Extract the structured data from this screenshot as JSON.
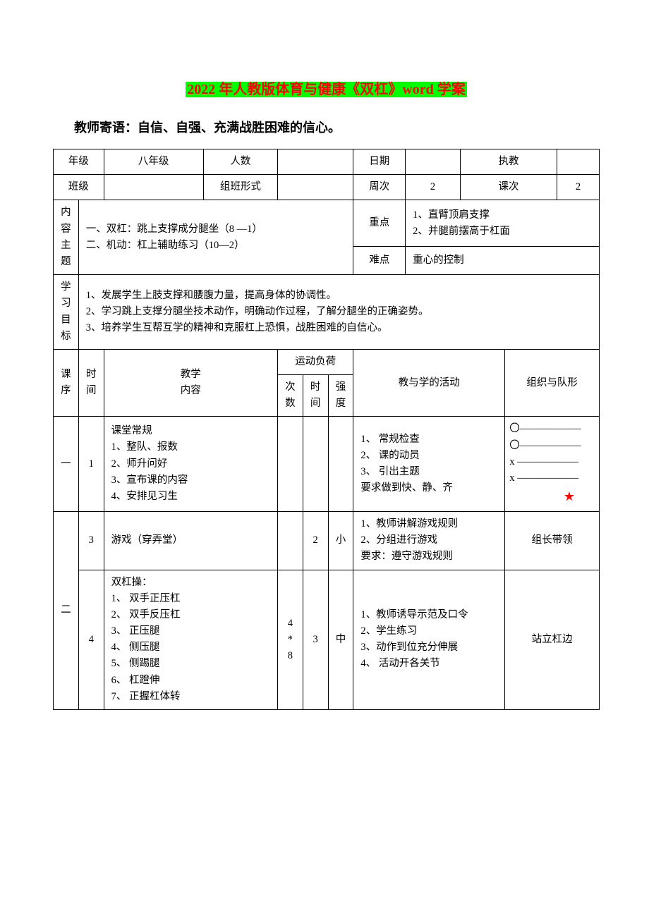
{
  "title_prefix": "2022 年人教版体育与健康《双杠》word 学案",
  "subtitle": "教师寄语：自信、自强、充满战胜困难的信心。",
  "colors": {
    "highlight_bg": "#00ff00",
    "highlight_text": "#ff0000",
    "border": "#000000",
    "text": "#000000",
    "background": "#ffffff",
    "star": "#ff0000"
  },
  "fonts": {
    "body_family": "SimSun",
    "heading_family": "SimHei",
    "title_size_pt": 15,
    "subtitle_size_pt": 14,
    "cell_size_pt": 11
  },
  "header_rows": {
    "row1": {
      "l1": "年级",
      "v1": "八年级",
      "l2": "人数",
      "v2": "",
      "l3": "日期",
      "v3": "",
      "l4": "执教",
      "v4": ""
    },
    "row2": {
      "l1": "班级",
      "v1": "",
      "l2": "组班形式",
      "v2": "",
      "l3": "周次",
      "v3": "2",
      "l4": "课次",
      "v4": "2"
    }
  },
  "content_theme": {
    "label": "内容主题",
    "body": "一、双杠：跳上支撑成分腿坐（8 —1）\n二、机动：杠上辅助练习（10—2）",
    "key_label": "重点",
    "key_body": "1、直臂顶肩支撑\n2、并腿前摆高于杠面",
    "hard_label": "难点",
    "hard_body": "重心的控制"
  },
  "learning_goal": {
    "label": "学习目标",
    "body": "1、发展学生上肢支撑和腰腹力量，提高身体的协调性。\n2、学习跳上支撑分腿坐技术动作，明确动作过程，了解分腿坐的正确姿势。\n3、培养学生互帮互学的精神和克服杠上恐惧，战胜困难的自信心。"
  },
  "section_header": {
    "kexu": "课序",
    "shijian": "时间",
    "neirong": "教学\n内容",
    "fuhe": "运动负荷",
    "cishu": "次数",
    "shijian2": "时间",
    "qiangdu": "强度",
    "huodong": "教与学的活动",
    "duixing": "组织与队形"
  },
  "rows": [
    {
      "kexu": "一",
      "shijian": "1",
      "neirong": "课堂常规\n1、整队、报数\n2、师升问好\n3、宣布课的内容\n4、安排见习生",
      "cishu": "",
      "shijian2": "",
      "qiangdu": "",
      "huodong": "1、 常规检查\n2、 课的动员\n3、 引出主题\n要求做到快、静、齐",
      "formation_lines": [
        "〇――――――",
        "〇――――――",
        "x ――――――",
        "x ――――――"
      ],
      "star": "★"
    },
    {
      "kexu": "",
      "shijian": "3",
      "neirong": "游戏（穿弄堂）",
      "cishu": "",
      "shijian2": "2",
      "qiangdu": "小",
      "huodong": "1、教师讲解游戏规则\n2、分组进行游戏\n要求：遵守游戏规则",
      "duixing": "组长带领"
    },
    {
      "kexu": "二",
      "shijian": "4",
      "neirong": "双杠操：\n1、 双手正压杠\n2、 双手反压杠\n3、 正压腿\n4、 侧压腿\n5、 侧踢腿\n6、 杠蹬伸\n7、 正握杠体转",
      "cishu": "4\n*\n8",
      "shijian2": "3",
      "qiangdu": "中",
      "huodong": "1、教师诱导示范及口令\n2、学生练习\n3、动作到位充分伸展\n4、 活动开各关节",
      "duixing": "站立杠边"
    }
  ]
}
